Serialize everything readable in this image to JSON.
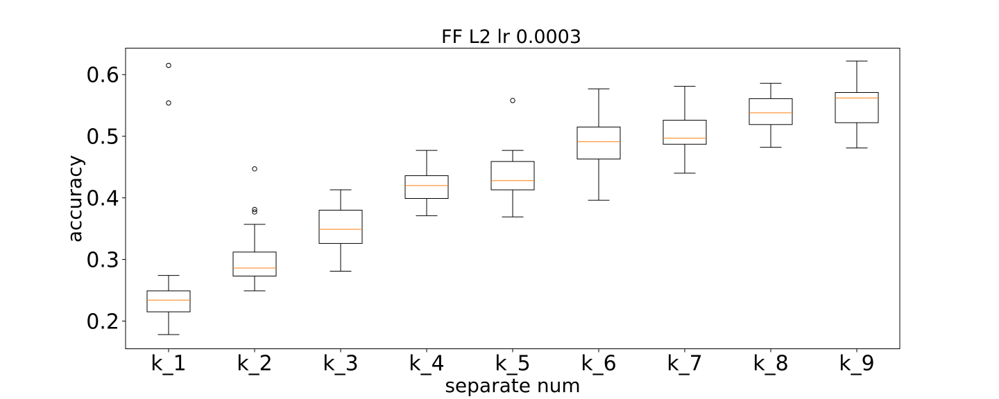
{
  "chart_data": {
    "type": "boxplot",
    "title": "FF L2 lr 0.0003",
    "xlabel": "separate num",
    "ylabel": "accuracy",
    "ylim": [
      0.155,
      0.643
    ],
    "yticks": [
      0.2,
      0.3,
      0.4,
      0.5,
      0.6
    ],
    "ytick_labels": [
      "0.2",
      "0.3",
      "0.4",
      "0.5",
      "0.6"
    ],
    "categories": [
      "k_1",
      "k_2",
      "k_3",
      "k_4",
      "k_5",
      "k_6",
      "k_7",
      "k_8",
      "k_9"
    ],
    "boxes": [
      {
        "whisker_low": 0.178,
        "q1": 0.215,
        "median": 0.234,
        "q3": 0.249,
        "whisker_high": 0.274,
        "fliers": [
          0.615,
          0.554
        ]
      },
      {
        "whisker_low": 0.249,
        "q1": 0.273,
        "median": 0.286,
        "q3": 0.312,
        "whisker_high": 0.357,
        "fliers": [
          0.447,
          0.381,
          0.377
        ]
      },
      {
        "whisker_low": 0.281,
        "q1": 0.326,
        "median": 0.349,
        "q3": 0.38,
        "whisker_high": 0.413,
        "fliers": []
      },
      {
        "whisker_low": 0.371,
        "q1": 0.399,
        "median": 0.42,
        "q3": 0.436,
        "whisker_high": 0.477,
        "fliers": []
      },
      {
        "whisker_low": 0.369,
        "q1": 0.413,
        "median": 0.428,
        "q3": 0.459,
        "whisker_high": 0.477,
        "fliers": [
          0.558
        ]
      },
      {
        "whisker_low": 0.396,
        "q1": 0.463,
        "median": 0.491,
        "q3": 0.515,
        "whisker_high": 0.577,
        "fliers": []
      },
      {
        "whisker_low": 0.44,
        "q1": 0.487,
        "median": 0.497,
        "q3": 0.526,
        "whisker_high": 0.581,
        "fliers": []
      },
      {
        "whisker_low": 0.482,
        "q1": 0.519,
        "median": 0.538,
        "q3": 0.561,
        "whisker_high": 0.586,
        "fliers": []
      },
      {
        "whisker_low": 0.481,
        "q1": 0.522,
        "median": 0.562,
        "q3": 0.571,
        "whisker_high": 0.622,
        "fliers": []
      }
    ],
    "colors": {
      "box": "#000000",
      "median": "#ff7f0e",
      "flier": "#000000"
    },
    "grid": false
  }
}
